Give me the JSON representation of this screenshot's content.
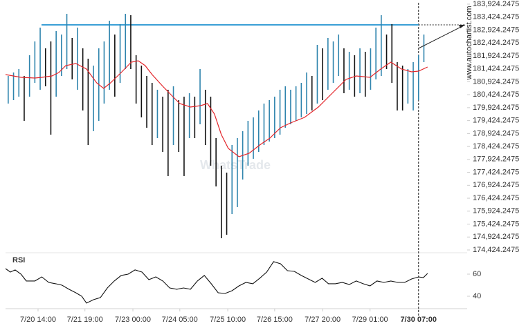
{
  "chart_data": [
    {
      "type": "range",
      "watermark": "WhatsTrade",
      "site": "www.autochartist.com",
      "xlim": [
        0,
        80
      ],
      "ylim": [
        174424.2475,
        183924.2475
      ],
      "yticks": [
        {
          "value": 174424.2475,
          "label": "174,424.2475"
        },
        {
          "value": 174924.2475,
          "label": "174,924.2475"
        },
        {
          "value": 175424.2475,
          "label": "175,424.2475"
        },
        {
          "value": 175924.2475,
          "label": "175,924.2475"
        },
        {
          "value": 176424.2475,
          "label": "176,424.2475"
        },
        {
          "value": 176924.2475,
          "label": "176,924.2475"
        },
        {
          "value": 177424.2475,
          "label": "177,424.2475"
        },
        {
          "value": 177924.2475,
          "label": "177,924.2475"
        },
        {
          "value": 178424.2475,
          "label": "178,424.2475"
        },
        {
          "value": 178924.2475,
          "label": "178,924.2475"
        },
        {
          "value": 179424.2475,
          "label": "179,424.2475"
        },
        {
          "value": 179924.2475,
          "label": "179,924.2475"
        },
        {
          "value": 180424.2475,
          "label": "180,424.2475"
        },
        {
          "value": 180924.2475,
          "label": "180,924.2475"
        },
        {
          "value": 181424.2475,
          "label": "181,424.2475"
        },
        {
          "value": 181924.2475,
          "label": "181,924.2475"
        },
        {
          "value": 182424.2475,
          "label": "182,424.2475"
        },
        {
          "value": 182924.2475,
          "label": "182,924.2475"
        },
        {
          "value": 183424.2475,
          "label": "183,424.2475"
        },
        {
          "value": 183924.2475,
          "label": "183,924.2475"
        }
      ],
      "xticks": [
        {
          "value": 6.1,
          "label": "7/20 14:00"
        },
        {
          "value": 14.9,
          "label": "7/21 19:00"
        },
        {
          "value": 23.9,
          "label": "7/23 00:00"
        },
        {
          "value": 32.7,
          "label": "7/24 05:00"
        },
        {
          "value": 41.7,
          "label": "7/25 10:00"
        },
        {
          "value": 50.5,
          "label": "7/26 15:00"
        },
        {
          "value": 59.5,
          "label": "7/27 20:00"
        },
        {
          "value": 68.4,
          "label": "7/29 01:00"
        },
        {
          "value": 77.5,
          "label": "7/30 07:00"
        }
      ],
      "up_color": "#2e84ad",
      "down_color": "#111111",
      "high": [
        181149,
        181283,
        181416,
        181149,
        181950,
        182483,
        183017,
        182216,
        182483,
        182883,
        182750,
        183550,
        182617,
        183017,
        182216,
        181816,
        181549,
        182216,
        182483,
        183284,
        182750,
        183150,
        183550,
        183497,
        181950,
        181549,
        181149,
        180882,
        180616,
        180349,
        180616,
        180749,
        180215,
        180349,
        180482,
        180349,
        181416,
        180616,
        180349,
        178748,
        177681,
        177414,
        178481,
        178748,
        179015,
        179415,
        179548,
        179815,
        180082,
        180215,
        180349,
        180616,
        180749,
        180616,
        180749,
        180882,
        181283,
        181149,
        182350,
        182216,
        182617,
        182483,
        182750,
        182216,
        182083,
        181950,
        182216,
        182083,
        182216,
        183017,
        183497,
        182750,
        183150,
        181683,
        181549,
        181416,
        181683,
        181950,
        182750
      ],
      "low": [
        180082,
        180215,
        180349,
        179415,
        180349,
        180882,
        180616,
        180749,
        178881,
        180349,
        181149,
        181416,
        181016,
        180616,
        179815,
        178481,
        179015,
        179415,
        180082,
        180616,
        180349,
        180882,
        181416,
        181416,
        180082,
        179548,
        179148,
        178481,
        178748,
        178214,
        177281,
        178481,
        178214,
        177281,
        178748,
        178748,
        179282,
        178481,
        177681,
        176880,
        174879,
        175013,
        175813,
        176080,
        177147,
        177681,
        177948,
        178214,
        178481,
        178615,
        178748,
        178881,
        179148,
        179282,
        179415,
        179548,
        179682,
        179815,
        180082,
        180215,
        180616,
        180882,
        181149,
        180482,
        180616,
        180349,
        180482,
        180349,
        180616,
        181016,
        181149,
        181416,
        180882,
        179815,
        179815,
        180082,
        179815,
        180215,
        181683
      ],
      "moving_average": {
        "color": "#e3262b",
        "x": [
          0,
          2.9,
          5.5,
          6.8,
          8.7,
          10,
          11.3,
          13.2,
          15.2,
          17.1,
          18.4,
          19.7,
          21.7,
          23.6,
          24.9,
          26.2,
          27.5,
          29.5,
          31.4,
          32.7,
          34.7,
          36.6,
          37.9,
          39.2,
          40.5,
          41.8,
          43.8,
          45.7,
          47.7,
          49.6,
          51.6,
          53.5,
          56.1,
          58.7,
          61.3,
          63.9,
          65.8,
          68.4,
          70.4,
          72.3,
          74.3,
          76.2,
          77.5,
          79.2
        ],
        "values": [
          181203,
          181096,
          181069,
          181096,
          181149,
          181283,
          181549,
          181629,
          181416,
          180882,
          180669,
          180882,
          181283,
          181683,
          181736,
          181549,
          181203,
          180749,
          180349,
          180082,
          179949,
          180002,
          180082,
          179682,
          178881,
          178348,
          178028,
          178161,
          178481,
          178748,
          179148,
          179335,
          179548,
          179949,
          180482,
          181016,
          181149,
          181096,
          181416,
          181683,
          181416,
          181309,
          181336,
          181496
        ]
      },
      "resistance": {
        "value": 183124.2475,
        "x_start": 6.75,
        "color": "#3a9fd6"
      }
    },
    {
      "type": "line",
      "title": "RSI",
      "xlim": [
        0,
        80
      ],
      "ylim": [
        30,
        77.5
      ],
      "yticks": [
        40,
        60
      ],
      "color": "#111111",
      "x": [
        0,
        0.9,
        1.8,
        2.9,
        3.9,
        5.5,
        6.8,
        8.1,
        9.4,
        10.6,
        11.9,
        13.2,
        14.3,
        15.2,
        16.5,
        17.8,
        19.1,
        20.4,
        21.7,
        23,
        24.3,
        25.6,
        26.9,
        28.2,
        29.5,
        30.8,
        32.1,
        33.4,
        34.7,
        36,
        37.3,
        38.6,
        39.9,
        41.2,
        42.5,
        43.8,
        45.1,
        46.4,
        47.7,
        49,
        50.3,
        51.6,
        52.9,
        54.2,
        55.5,
        56.8,
        58.1,
        59.4,
        60.6,
        61.9,
        63.2,
        64.5,
        65.8,
        67.1,
        68.4,
        69.7,
        71,
        72.3,
        73.6,
        74.9,
        76.2,
        77.5,
        78.4,
        79.2
      ],
      "values": [
        65,
        61.9,
        63.8,
        60,
        53.8,
        53.8,
        57.5,
        52.5,
        51.3,
        50,
        46.3,
        43.1,
        40,
        33.8,
        36.9,
        38.8,
        47.5,
        53.8,
        58.8,
        60,
        63.8,
        61.9,
        55,
        57.5,
        53.8,
        47.5,
        46.3,
        47.5,
        46.3,
        53.8,
        58.8,
        51.3,
        43.1,
        42.5,
        45,
        49.4,
        52.5,
        51.3,
        56.3,
        61.9,
        71.3,
        69.4,
        63.1,
        62.5,
        58.8,
        55.6,
        52.5,
        56.3,
        51.3,
        51.3,
        52.5,
        50.6,
        53.8,
        51.3,
        49.4,
        53.8,
        52.5,
        53.8,
        52.5,
        52.5,
        55.6,
        57.5,
        56.9,
        60.6
      ]
    }
  ]
}
